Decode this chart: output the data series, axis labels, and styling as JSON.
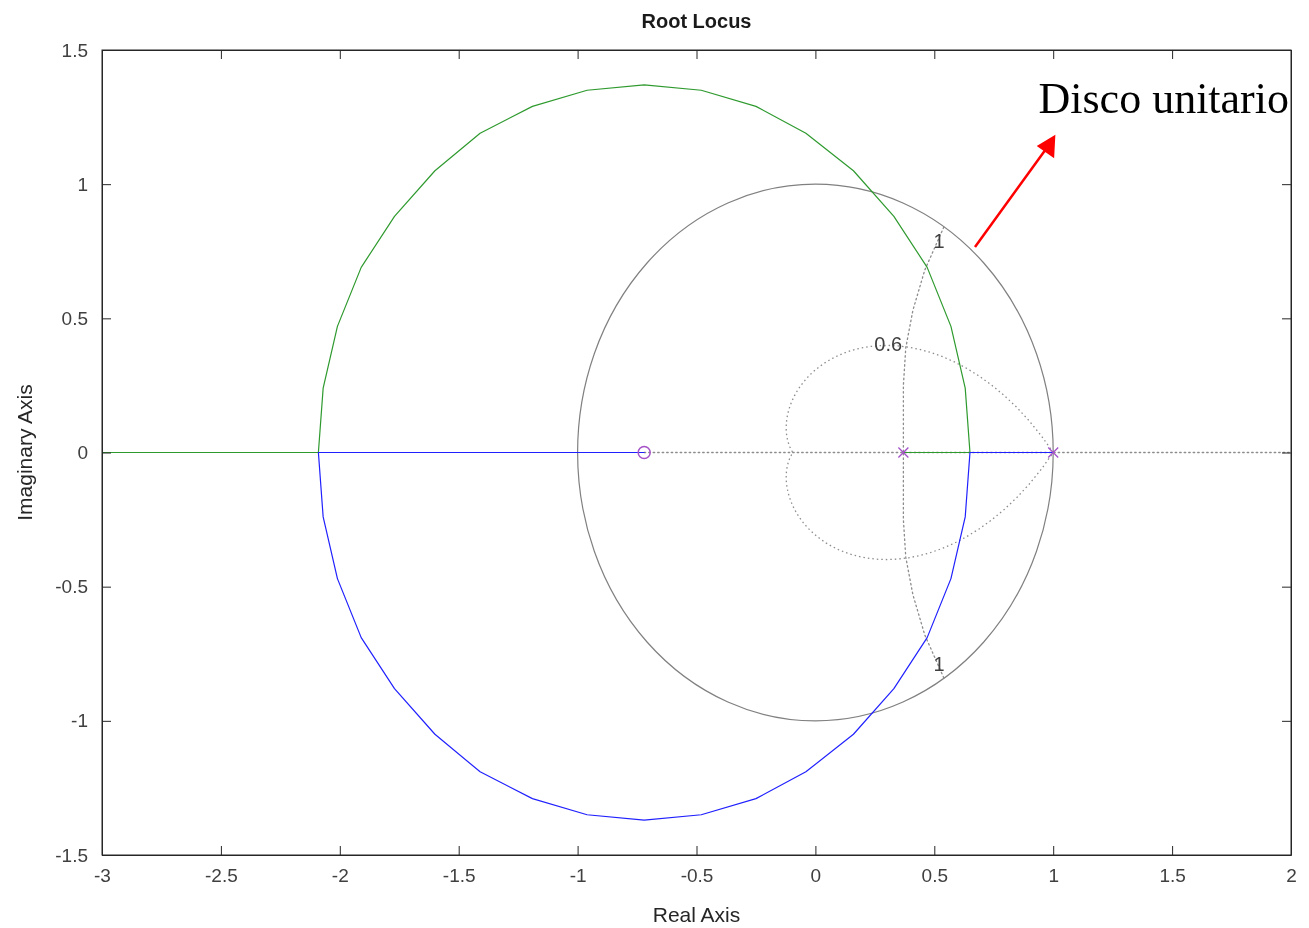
{
  "chart_data": {
    "type": "line",
    "title": "Root Locus",
    "xlabel": "Real Axis",
    "ylabel": "Imaginary Axis",
    "xlim": [
      -3,
      2
    ],
    "ylim": [
      -1.5,
      1.5
    ],
    "xticks": [
      -3,
      -2.5,
      -2,
      -1.5,
      -1,
      -0.5,
      0,
      0.5,
      1,
      1.5,
      2
    ],
    "yticks": [
      -1.5,
      -1,
      -0.5,
      0,
      0.5,
      1,
      1.5
    ],
    "grid": false,
    "series": [
      {
        "type": "line",
        "line_style": "dotted",
        "color": "#8c8c8c",
        "x": [
          -0.72,
          2
        ],
        "values": [
          0,
          0
        ]
      },
      {
        "type": "line",
        "line_style": "dotted",
        "color": "#8c8c8c",
        "x": [
          0.54,
          0.46,
          0.41,
          0.38,
          0.37,
          0.37
        ],
        "values": [
          0.84,
          0.68,
          0.53,
          0.39,
          0.25,
          0
        ]
      },
      {
        "type": "line",
        "line_style": "dotted",
        "color": "#8c8c8c",
        "x": [
          0.54,
          0.46,
          0.41,
          0.38,
          0.37,
          0.37
        ],
        "values": [
          -0.84,
          -0.68,
          -0.53,
          -0.39,
          -0.25,
          0
        ]
      },
      {
        "type": "line",
        "line_style": "solid",
        "color": "#2e9a2e",
        "x": [
          0.37,
          0.65,
          0.63,
          0.57,
          0.47,
          0.33,
          0.16,
          -0.04,
          -0.25,
          -0.48,
          -0.72,
          -0.96,
          -1.19,
          -1.41,
          -1.6,
          -1.77,
          -1.91,
          -2.01,
          -2.07,
          -2.09,
          -3
        ],
        "values": [
          0,
          0,
          0.24,
          0.47,
          0.69,
          0.88,
          1.05,
          1.19,
          1.29,
          1.35,
          1.37,
          1.35,
          1.29,
          1.19,
          1.05,
          0.88,
          0.69,
          0.47,
          0.24,
          0,
          0
        ]
      },
      {
        "type": "line",
        "line_style": "solid",
        "color": "#2020ff",
        "x": [
          1,
          0.65,
          0.63,
          0.57,
          0.47,
          0.33,
          0.16,
          -0.04,
          -0.25,
          -0.48,
          -0.72,
          -0.96,
          -1.19,
          -1.41,
          -1.6,
          -1.77,
          -1.91,
          -2.01,
          -2.07,
          -2.09,
          -0.72
        ],
        "values": [
          0,
          0,
          -0.24,
          -0.47,
          -0.69,
          -0.88,
          -1.05,
          -1.19,
          -1.29,
          -1.35,
          -1.37,
          -1.35,
          -1.29,
          -1.19,
          -1.05,
          -0.88,
          -0.69,
          -0.47,
          -0.24,
          0,
          0
        ]
      },
      {
        "type": "scatter",
        "marker": "circle",
        "color": "#a552c8",
        "x": [
          -0.72
        ],
        "values": [
          0
        ]
      },
      {
        "type": "scatter",
        "marker": "cross",
        "color": "#a552c8",
        "x": [
          0.37,
          1
        ],
        "values": [
          0,
          0
        ]
      }
    ],
    "annotations": [
      {
        "text": "1",
        "x": 0.52,
        "y": 0.79
      },
      "0.6",
      {
        "text": "1",
        "x": 0.52,
        "y": -0.79
      },
      "Disco unitario"
    ]
  }
}
